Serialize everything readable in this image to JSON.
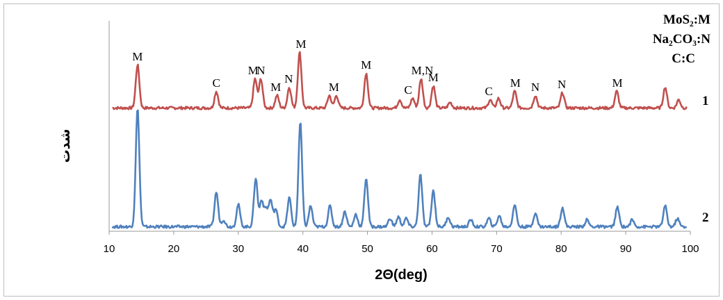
{
  "chart_data": {
    "type": "line",
    "xlabel": "2Θ(deg)",
    "ylabel": "شدت",
    "xlim": [
      10,
      100
    ],
    "xticks": [
      "10",
      "20",
      "30",
      "40",
      "50",
      "60",
      "70",
      "80",
      "90",
      "100"
    ],
    "grid": false,
    "legend_position": "top-right",
    "legend": [
      "MoS₂:M",
      "Na₂CO₃:N",
      "C:C"
    ],
    "series": [
      {
        "name": "1",
        "color": "#c0504d",
        "baseline": 0,
        "peaks": [
          {
            "x": 14.4,
            "h": 62
          },
          {
            "x": 26.6,
            "h": 24
          },
          {
            "x": 32.6,
            "h": 42
          },
          {
            "x": 33.5,
            "h": 42
          },
          {
            "x": 36.0,
            "h": 18
          },
          {
            "x": 37.9,
            "h": 30
          },
          {
            "x": 39.5,
            "h": 80
          },
          {
            "x": 44.1,
            "h": 18
          },
          {
            "x": 45.2,
            "h": 18
          },
          {
            "x": 49.8,
            "h": 50
          },
          {
            "x": 55.0,
            "h": 12
          },
          {
            "x": 57.0,
            "h": 14
          },
          {
            "x": 58.3,
            "h": 42
          },
          {
            "x": 60.2,
            "h": 32
          },
          {
            "x": 62.8,
            "h": 8
          },
          {
            "x": 69.0,
            "h": 12
          },
          {
            "x": 70.3,
            "h": 14
          },
          {
            "x": 72.8,
            "h": 24
          },
          {
            "x": 76.0,
            "h": 18
          },
          {
            "x": 80.2,
            "h": 22
          },
          {
            "x": 88.6,
            "h": 24
          },
          {
            "x": 96.1,
            "h": 30
          },
          {
            "x": 98.2,
            "h": 12
          }
        ]
      },
      {
        "name": "2",
        "color": "#4f81bd",
        "baseline": 0,
        "peaks": [
          {
            "x": 14.4,
            "h": 170
          },
          {
            "x": 26.6,
            "h": 50
          },
          {
            "x": 27.7,
            "h": 10
          },
          {
            "x": 30.0,
            "h": 32
          },
          {
            "x": 32.7,
            "h": 70
          },
          {
            "x": 33.6,
            "h": 38
          },
          {
            "x": 34.3,
            "h": 25
          },
          {
            "x": 35.0,
            "h": 38
          },
          {
            "x": 35.8,
            "h": 25
          },
          {
            "x": 37.9,
            "h": 42
          },
          {
            "x": 39.6,
            "h": 150
          },
          {
            "x": 41.2,
            "h": 30
          },
          {
            "x": 44.2,
            "h": 30
          },
          {
            "x": 46.5,
            "h": 22
          },
          {
            "x": 48.2,
            "h": 18
          },
          {
            "x": 49.8,
            "h": 70
          },
          {
            "x": 53.5,
            "h": 12
          },
          {
            "x": 54.8,
            "h": 14
          },
          {
            "x": 56.0,
            "h": 12
          },
          {
            "x": 58.2,
            "h": 75
          },
          {
            "x": 60.2,
            "h": 52
          },
          {
            "x": 62.5,
            "h": 14
          },
          {
            "x": 66.0,
            "h": 10
          },
          {
            "x": 68.8,
            "h": 12
          },
          {
            "x": 70.4,
            "h": 16
          },
          {
            "x": 72.8,
            "h": 32
          },
          {
            "x": 76.0,
            "h": 20
          },
          {
            "x": 80.2,
            "h": 28
          },
          {
            "x": 84.0,
            "h": 10
          },
          {
            "x": 88.7,
            "h": 28
          },
          {
            "x": 91.0,
            "h": 10
          },
          {
            "x": 96.1,
            "h": 30
          },
          {
            "x": 98.0,
            "h": 12
          }
        ]
      }
    ],
    "annotations": [
      {
        "text": "M",
        "x": 14.4
      },
      {
        "text": "C",
        "x": 26.6
      },
      {
        "text": "M",
        "x": 32.3
      },
      {
        "text": "N",
        "x": 33.5
      },
      {
        "text": "M",
        "x": 35.8
      },
      {
        "text": "N",
        "x": 37.8
      },
      {
        "text": "M",
        "x": 39.7
      },
      {
        "text": "M",
        "x": 44.8
      },
      {
        "text": "M",
        "x": 49.8
      },
      {
        "text": "C",
        "x": 56.3
      },
      {
        "text": "M,N",
        "x": 58.5
      },
      {
        "text": "M",
        "x": 60.2
      },
      {
        "text": "C",
        "x": 68.8
      },
      {
        "text": "M",
        "x": 72.9
      },
      {
        "text": "N",
        "x": 76.0
      },
      {
        "text": "N",
        "x": 80.1
      },
      {
        "text": "M",
        "x": 88.7
      }
    ]
  }
}
